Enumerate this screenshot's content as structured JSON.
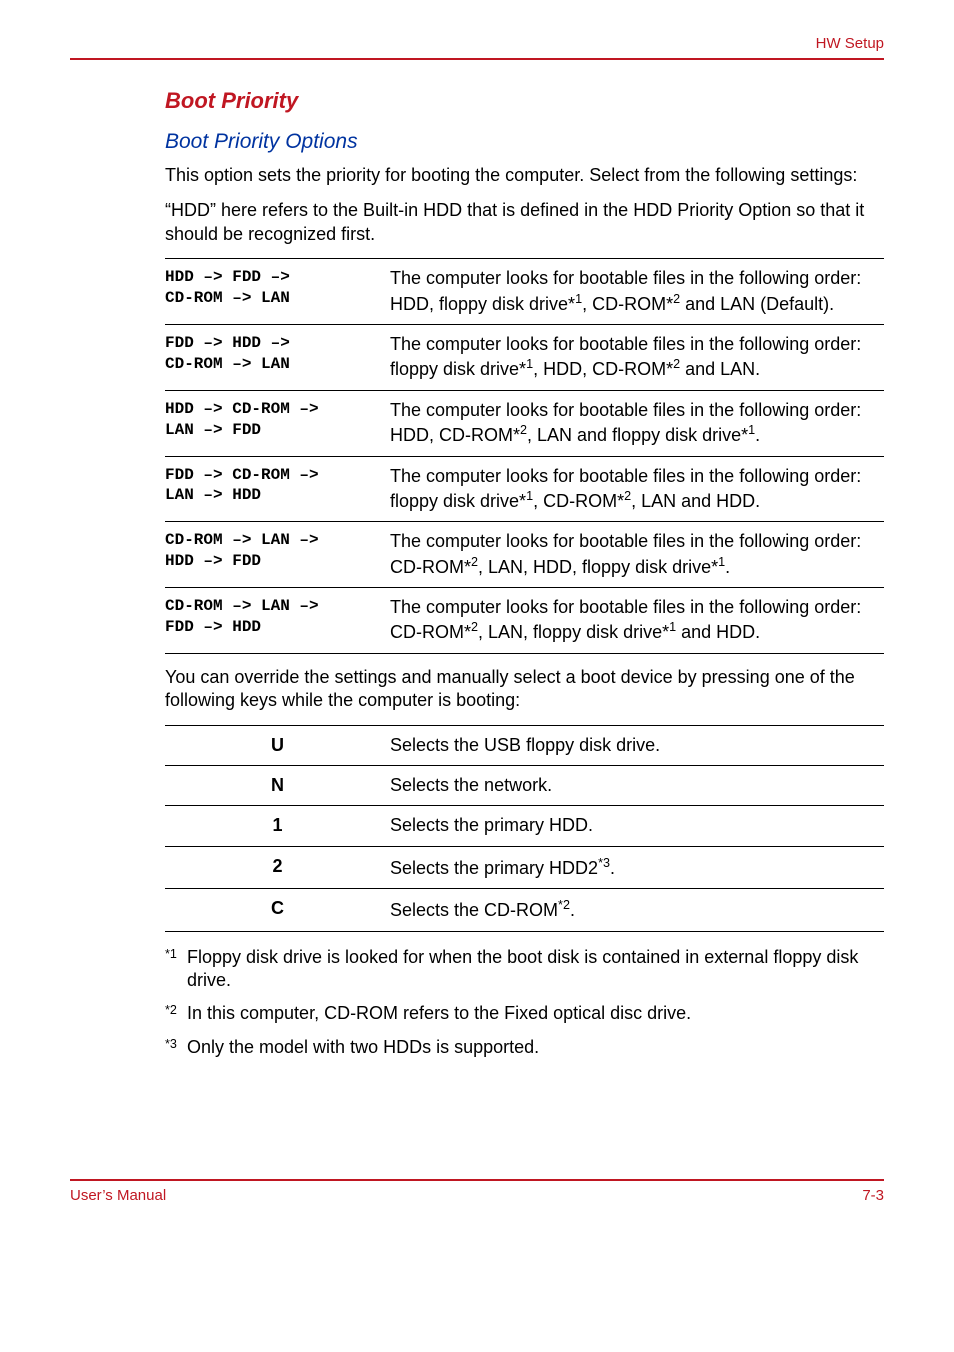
{
  "colors": {
    "accent": "#c01722",
    "heading_blue": "#0033a0",
    "text": "#000000",
    "rule": "#c01722"
  },
  "header": {
    "right": "HW Setup"
  },
  "headings": {
    "h2": "Boot Priority",
    "h3": "Boot Priority Options"
  },
  "intro": {
    "p1": "This option sets the priority for booting the computer. Select from the following settings:",
    "p2": "“HDD” here refers to the Built-in HDD that is defined in the HDD Priority Option so that it should be recognized first."
  },
  "boot_rows": [
    {
      "order_l1": "HDD → FDD →",
      "order_l2": "CD-ROM → LAN",
      "desc_pre": "The computer looks for bootable files in the following order: HDD, floppy disk drive*",
      "desc_sup1": "1",
      "desc_mid": ", CD-ROM*",
      "desc_sup2": "2",
      "desc_post": " and LAN (Default)."
    },
    {
      "order_l1": "FDD → HDD →",
      "order_l2": "CD-ROM → LAN",
      "desc_pre": "The computer looks for bootable files in the following order: floppy disk drive*",
      "desc_sup1": "1",
      "desc_mid": ", HDD, CD-ROM*",
      "desc_sup2": "2",
      "desc_post": " and LAN."
    },
    {
      "order_l1": "HDD → CD-ROM →",
      "order_l2": "LAN → FDD",
      "desc_pre": "The computer looks for bootable files in the following order: HDD, CD-ROM*",
      "desc_sup1": "2",
      "desc_mid": ", LAN and floppy disk drive*",
      "desc_sup2": "1",
      "desc_post": "."
    },
    {
      "order_l1": "FDD → CD-ROM →",
      "order_l2": "LAN → HDD",
      "desc_pre": "The computer looks for bootable files in the following order: floppy disk drive*",
      "desc_sup1": "1",
      "desc_mid": ", CD-ROM*",
      "desc_sup2": "2",
      "desc_post": ", LAN and HDD."
    },
    {
      "order_l1": "CD-ROM → LAN →",
      "order_l2": "HDD → FDD",
      "desc_pre": "The computer looks for bootable files in the following order: CD-ROM*",
      "desc_sup1": "2",
      "desc_mid": ", LAN, HDD, floppy disk drive*",
      "desc_sup2": "1",
      "desc_post": "."
    },
    {
      "order_l1": "CD-ROM → LAN →",
      "order_l2": "FDD → HDD",
      "desc_pre": "The computer looks for bootable files in the following order: CD-ROM*",
      "desc_sup1": "2",
      "desc_mid": ", LAN, floppy disk drive*",
      "desc_sup2": "1",
      "desc_post": " and HDD."
    }
  ],
  "override_para": "You can override the settings and manually select a boot device by pressing one of the following keys while the computer is booting:",
  "key_rows": [
    {
      "key": "U",
      "desc": "Selects the USB floppy disk drive.",
      "sup": ""
    },
    {
      "key": "N",
      "desc": "Selects the network.",
      "sup": ""
    },
    {
      "key": "1",
      "desc": "Selects the primary HDD.",
      "sup": ""
    },
    {
      "key": "2",
      "desc": "Selects the primary HDD2",
      "sup": "*3",
      "post": "."
    },
    {
      "key": "C",
      "desc": "Selects the CD-ROM",
      "sup": "*2",
      "post": "."
    }
  ],
  "footnotes": [
    {
      "mark": "*1",
      "text": "Floppy disk drive is looked for when the boot disk is contained in external floppy disk drive."
    },
    {
      "mark": "*2",
      "text": "In this computer, CD-ROM refers to the Fixed optical disc drive."
    },
    {
      "mark": "*3",
      "text": "Only the model with two HDDs is supported."
    }
  ],
  "footer": {
    "left": "User’s Manual",
    "right": "7-3"
  }
}
